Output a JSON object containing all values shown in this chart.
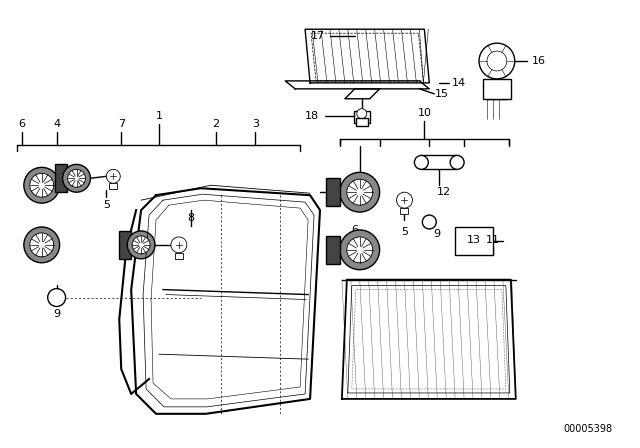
{
  "bg_color": "#ffffff",
  "line_color": "#000000",
  "part_number_text": "00005398",
  "figsize": [
    6.4,
    4.48
  ],
  "dpi": 100
}
